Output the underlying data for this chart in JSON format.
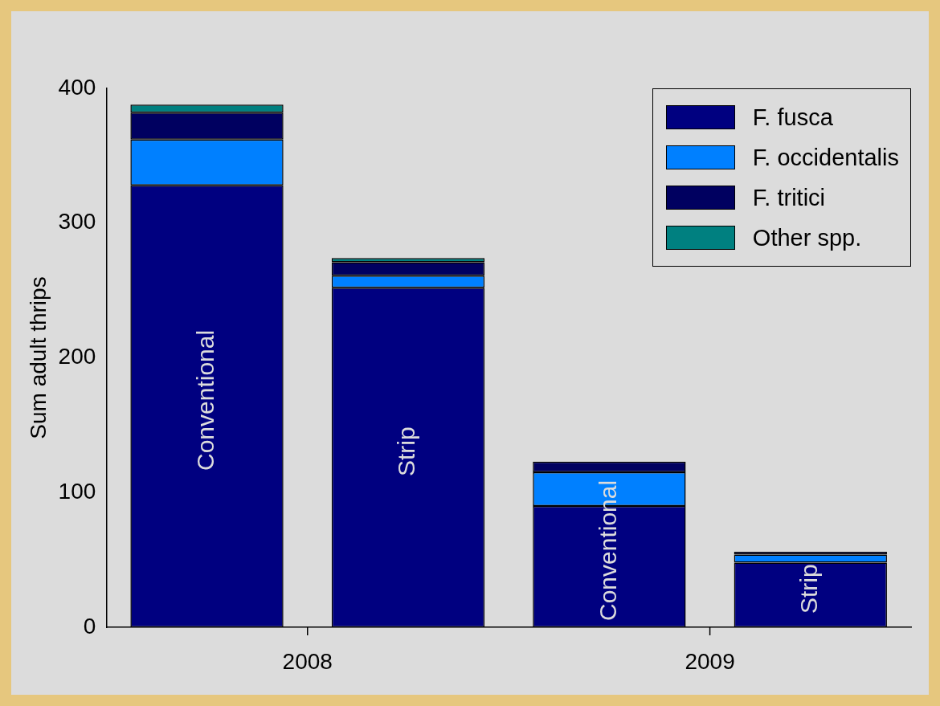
{
  "chart_data": {
    "type": "bar",
    "stacked": true,
    "ylabel": "Sum adult thrips",
    "categories": [
      "Conventional",
      "Strip",
      "Conventional",
      "Strip"
    ],
    "series": [
      {
        "name": "F. fusca",
        "color": "#000080",
        "values": [
          328,
          252,
          90,
          48
        ]
      },
      {
        "name": "F. occidentalis",
        "color": "#0080ff",
        "values": [
          34,
          9,
          25,
          6
        ]
      },
      {
        "name": "F. tritici",
        "color": "#000060",
        "values": [
          20,
          10,
          8,
          2
        ]
      },
      {
        "name": "Other spp.",
        "color": "#008080",
        "values": [
          6,
          3,
          null,
          null
        ]
      }
    ],
    "ylim": [
      0,
      400
    ],
    "yticks": [
      0,
      100,
      200,
      300,
      400
    ],
    "grid": false,
    "legend": "top right",
    "annotations": [
      "2008",
      "2009"
    ]
  }
}
